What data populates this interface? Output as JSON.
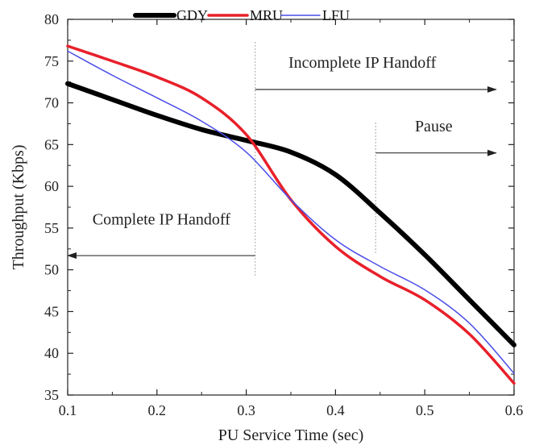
{
  "chart_data": {
    "type": "line",
    "title": "",
    "xlabel": "PU Service Time (sec)",
    "ylabel": "Throughput (Kbps)",
    "xlim": [
      0.1,
      0.6
    ],
    "ylim": [
      35,
      80
    ],
    "x_ticks": [
      0.1,
      0.2,
      0.3,
      0.4,
      0.5,
      0.6
    ],
    "x_tick_labels": [
      "0.1",
      "0.2",
      "0.3",
      "0.4",
      "0.5",
      "0.6"
    ],
    "y_ticks": [
      35,
      40,
      45,
      50,
      55,
      60,
      65,
      70,
      75,
      80
    ],
    "y_tick_labels": [
      "35",
      "40",
      "45",
      "50",
      "55",
      "60",
      "65",
      "70",
      "75",
      "80"
    ],
    "grid": false,
    "legend_position": "top",
    "series": [
      {
        "name": "GDY",
        "color": "#000000",
        "x": [
          0.1,
          0.15,
          0.2,
          0.25,
          0.3,
          0.35,
          0.4,
          0.45,
          0.5,
          0.55,
          0.6
        ],
        "y": [
          72.3,
          70.4,
          68.5,
          66.8,
          65.5,
          64.1,
          61.4,
          56.8,
          51.8,
          46.4,
          41.0
        ]
      },
      {
        "name": "MRU",
        "color": "#e8202a",
        "x": [
          0.1,
          0.15,
          0.2,
          0.25,
          0.3,
          0.35,
          0.4,
          0.45,
          0.5,
          0.55,
          0.6
        ],
        "y": [
          76.8,
          75.0,
          73.1,
          70.6,
          66.2,
          58.4,
          52.8,
          49.2,
          46.4,
          42.3,
          36.4
        ]
      },
      {
        "name": "LFU",
        "color": "#4b4de8",
        "x": [
          0.1,
          0.15,
          0.2,
          0.25,
          0.3,
          0.35,
          0.4,
          0.45,
          0.5,
          0.55,
          0.6
        ],
        "y": [
          76.2,
          73.3,
          70.6,
          67.8,
          64.1,
          58.4,
          53.6,
          50.4,
          47.6,
          43.6,
          37.6
        ]
      }
    ],
    "annotations": [
      {
        "id": "incomplete",
        "text": "Incomplete IP Handoff",
        "arrow": "right",
        "x_start": 0.31,
        "x_end": 0.58,
        "y": 71.6,
        "text_y": 74.2,
        "text_x": 0.43
      },
      {
        "id": "pause",
        "text": "Pause",
        "arrow": "right",
        "x_start": 0.445,
        "x_end": 0.58,
        "y": 64.0,
        "text_y": 66.6,
        "text_x": 0.51
      },
      {
        "id": "complete",
        "text": "Complete IP Handoff",
        "arrow": "left",
        "x_start": 0.31,
        "x_end": 0.1,
        "y": 51.7,
        "text_y": 55.4,
        "text_x": 0.205
      }
    ],
    "separators": [
      {
        "x": 0.31,
        "y_start": 49.3,
        "y_end": 77.3
      },
      {
        "x": 0.445,
        "y_start": 52.0,
        "y_end": 67.8
      }
    ]
  }
}
